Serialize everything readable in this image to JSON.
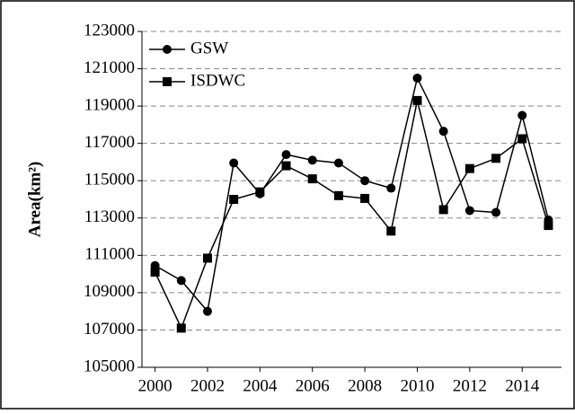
{
  "chart_data": {
    "type": "line",
    "y_label": "Area(km²)",
    "x": [
      2000,
      2001,
      2002,
      2003,
      2004,
      2005,
      2006,
      2007,
      2008,
      2009,
      2010,
      2011,
      2012,
      2013,
      2014,
      2015
    ],
    "xlim": [
      1999.5,
      2015.5
    ],
    "xticks": [
      2000,
      2002,
      2004,
      2006,
      2008,
      2010,
      2012,
      2014
    ],
    "ylim": [
      105000,
      123000
    ],
    "yticks": [
      105000,
      107000,
      109000,
      111000,
      113000,
      115000,
      117000,
      119000,
      121000,
      123000
    ],
    "grid": true,
    "legend": "upper-left",
    "series": [
      {
        "name": "GSW",
        "color": "#000000",
        "marker": "circle",
        "values": [
          110450,
          109650,
          108000,
          115950,
          114300,
          116400,
          116100,
          115950,
          115000,
          114600,
          120500,
          117650,
          113400,
          113300,
          118500,
          112900
        ]
      },
      {
        "name": "ISDWC",
        "color": "#000000",
        "marker": "square",
        "values": [
          110100,
          107100,
          110850,
          114000,
          114400,
          115800,
          115100,
          114200,
          114050,
          112300,
          119300,
          113450,
          115650,
          116200,
          117250,
          112600
        ]
      }
    ]
  }
}
